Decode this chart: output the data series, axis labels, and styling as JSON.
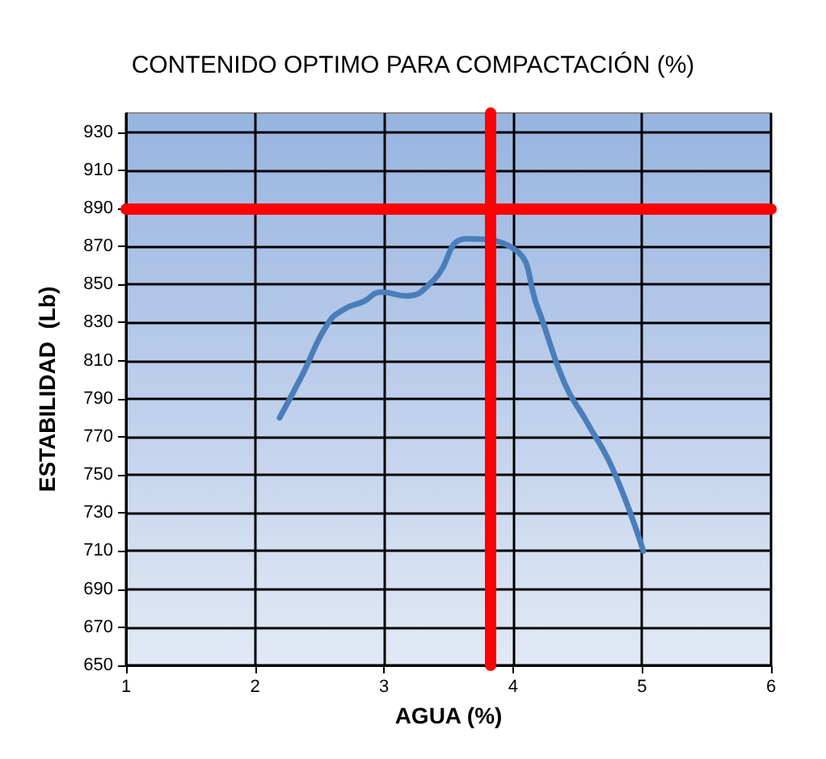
{
  "chart_data": {
    "type": "line",
    "title": "CONTENIDO OPTIMO PARA COMPACTACIÓN (%)",
    "xlabel": "AGUA (%)",
    "ylabel": "ESTABILIDAD  (Lb)",
    "xlim": [
      1,
      6
    ],
    "xticks": [
      1,
      2,
      3,
      4,
      5,
      6
    ],
    "ylim": [
      650,
      940
    ],
    "yticks": [
      650,
      670,
      690,
      710,
      730,
      750,
      770,
      790,
      810,
      830,
      850,
      870,
      890,
      910,
      930
    ],
    "grid": true,
    "marker": "none",
    "line_style": "solid",
    "series": [
      {
        "color": "#4a7ebb",
        "x": [
          2.19,
          2.37,
          2.56,
          2.69,
          2.84,
          2.98,
          3.17,
          3.38,
          3.64,
          4.0,
          4.19,
          4.4,
          4.57,
          4.78,
          5.01
        ],
        "values": [
          780,
          803,
          829,
          837,
          841,
          846,
          844,
          852,
          874,
          869,
          838,
          798,
          778,
          752,
          710
        ]
      }
    ],
    "ref_lines": [
      {
        "axis": "y",
        "value": 890,
        "color": "#ff0000"
      },
      {
        "axis": "x",
        "value": 3.82,
        "color": "#ff0000"
      }
    ]
  }
}
